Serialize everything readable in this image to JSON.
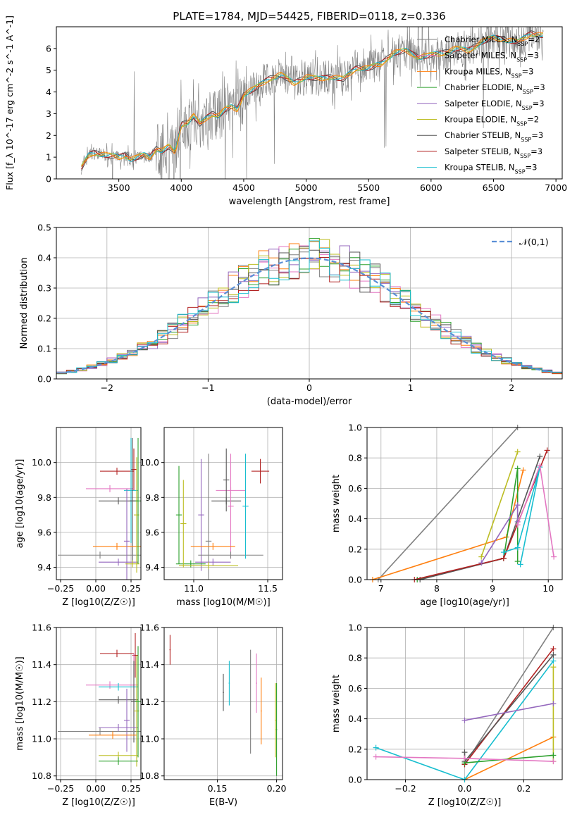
{
  "title": "PLATE=1784, MJD=54425, FIBERID=0118, z=0.336",
  "colors": [
    "#808080",
    "#e377c2",
    "#ff7f0e",
    "#2ca02c",
    "#9467bd",
    "#bcbd22",
    "#555555",
    "#b22222",
    "#17becf"
  ],
  "chart_data": [
    {
      "id": "spectrum",
      "type": "line",
      "xlabel": "wavelength [Angstrom, rest frame]",
      "ylabel": "Flux [f_λ 10^-17 erg cm^-2 s^-1 A^-1]",
      "xlim": [
        3000,
        7050
      ],
      "ylim": [
        0,
        7
      ],
      "xticks": [
        3500,
        4000,
        4500,
        5000,
        5500,
        6000,
        6500,
        7000
      ],
      "yticks": [
        0,
        1,
        2,
        3,
        4,
        5,
        6
      ],
      "continuum": {
        "x": [
          3200,
          3260,
          3300,
          3400,
          3500,
          3550,
          3600,
          3650,
          3700,
          3750,
          3800,
          3850,
          3900,
          3950,
          4000,
          4050,
          4100,
          4150,
          4200,
          4250,
          4300,
          4350,
          4400,
          4450,
          4500,
          4600,
          4700,
          4800,
          4900,
          5000,
          5100,
          5200,
          5300,
          5400,
          5500,
          5600,
          5700,
          5800,
          5900,
          6000,
          6100,
          6200,
          6300,
          6400,
          6500,
          6600,
          6700,
          6800,
          6900
        ],
        "y": [
          0.5,
          1.1,
          1.2,
          1.1,
          1.0,
          1.1,
          0.9,
          1.0,
          1.1,
          1.0,
          1.4,
          1.3,
          1.5,
          1.2,
          2.5,
          2.6,
          2.9,
          2.5,
          2.8,
          3.0,
          2.9,
          3.2,
          3.3,
          3.2,
          3.9,
          4.2,
          4.6,
          4.8,
          4.4,
          4.7,
          4.6,
          4.7,
          4.6,
          5.1,
          5.1,
          5.3,
          5.8,
          5.9,
          5.6,
          5.7,
          5.8,
          6.0,
          5.9,
          6.3,
          6.5,
          6.4,
          6.3,
          6.7,
          6.6
        ]
      },
      "legend": [
        "Chabrier MILES, N_SSP=2",
        "Salpeter MILES, N_SSP=3",
        "Kroupa MILES, N_SSP=3",
        "Chabrier ELODIE, N_SSP=3",
        "Salpeter ELODIE, N_SSP=3",
        "Kroupa ELODIE, N_SSP=2",
        "Chabrier STELIB, N_SSP=3",
        "Salpeter STELIB, N_SSP=3",
        "Kroupa STELIB, N_SSP=3"
      ],
      "legend_labels": [
        {
          "pre": "Chabrier MILES, N",
          "sub": "SSP",
          "post": "=2"
        },
        {
          "pre": "Salpeter MILES, N",
          "sub": "SSP",
          "post": "=3"
        },
        {
          "pre": "Kroupa MILES, N",
          "sub": "SSP",
          "post": "=3"
        },
        {
          "pre": "Chabrier ELODIE, N",
          "sub": "SSP",
          "post": "=3"
        },
        {
          "pre": "Salpeter ELODIE, N",
          "sub": "SSP",
          "post": "=3"
        },
        {
          "pre": "Kroupa ELODIE, N",
          "sub": "SSP",
          "post": "=2"
        },
        {
          "pre": "Chabrier STELIB, N",
          "sub": "SSP",
          "post": "=3"
        },
        {
          "pre": "Salpeter STELIB, N",
          "sub": "SSP",
          "post": "=3"
        },
        {
          "pre": "Kroupa STELIB, N",
          "sub": "SSP",
          "post": "=3"
        }
      ],
      "legend_position": "top-right"
    },
    {
      "id": "residuals",
      "type": "line",
      "xlabel": "(data-model)/error",
      "ylabel": "Normed distribution",
      "xlim": [
        -2.5,
        2.5
      ],
      "ylim": [
        0,
        0.5
      ],
      "xticks": [
        -2,
        -1,
        0,
        1,
        2
      ],
      "yticks": [
        0.0,
        0.1,
        0.2,
        0.3,
        0.4,
        0.5
      ],
      "legend": [
        "𝒩(0,1)"
      ],
      "legend_position": "top-right",
      "grid": true
    },
    {
      "id": "age_vs_Z",
      "type": "scatter",
      "xlabel": "Z [log10(Z/Z☉)]",
      "ylabel": "age [log10(age/yr)]",
      "xlim": [
        -0.28,
        0.32
      ],
      "ylim": [
        9.33,
        10.2
      ],
      "xticks": [
        -0.25,
        0.0,
        0.25
      ],
      "yticks": [
        9.4,
        9.6,
        9.8,
        10.0
      ],
      "grid": true
    },
    {
      "id": "age_vs_mass",
      "type": "scatter",
      "xlabel": "mass [log10(M/M☉)]",
      "xlim": [
        10.8,
        11.6
      ],
      "ylim": [
        9.33,
        10.2
      ],
      "xticks": [
        11.0,
        11.5
      ],
      "yticks": [
        9.4,
        9.6,
        9.8,
        10.0
      ],
      "grid": true
    },
    {
      "id": "weight_vs_age",
      "type": "line",
      "xlabel": "age [log10(age/yr)]",
      "ylabel": "mass weight",
      "xlim": [
        6.75,
        10.25
      ],
      "ylim": [
        0,
        1
      ],
      "xticks": [
        7,
        8,
        9,
        10
      ],
      "yticks": [
        0.0,
        0.2,
        0.4,
        0.6,
        0.8,
        1.0
      ],
      "grid": true
    },
    {
      "id": "mass_vs_Z",
      "type": "scatter",
      "xlabel": "Z [log10(Z/Z☉)]",
      "ylabel": "mass [log10(M/M☉)]",
      "xlim": [
        -0.28,
        0.32
      ],
      "ylim": [
        10.78,
        11.6
      ],
      "xticks": [
        -0.25,
        0.0,
        0.25
      ],
      "yticks": [
        10.8,
        11.0,
        11.2,
        11.4,
        11.6
      ],
      "grid": true
    },
    {
      "id": "mass_vs_ebv",
      "type": "scatter",
      "xlabel": "E(B-V)",
      "xlim": [
        0.105,
        0.205
      ],
      "ylim": [
        10.78,
        11.6
      ],
      "xticks": [
        0.15,
        0.2
      ],
      "yticks": [
        10.8,
        11.0,
        11.2,
        11.4,
        11.6
      ],
      "grid": true
    },
    {
      "id": "weight_vs_Z",
      "type": "line",
      "xlabel": "Z [log10(Z/Z☉)]",
      "ylabel": "mass weight",
      "xlim": [
        -0.33,
        0.33
      ],
      "ylim": [
        0,
        1
      ],
      "xticks": [
        -0.2,
        0.0,
        0.2
      ],
      "yticks": [
        0.0,
        0.2,
        0.4,
        0.6,
        0.8,
        1.0
      ],
      "grid": true
    }
  ]
}
